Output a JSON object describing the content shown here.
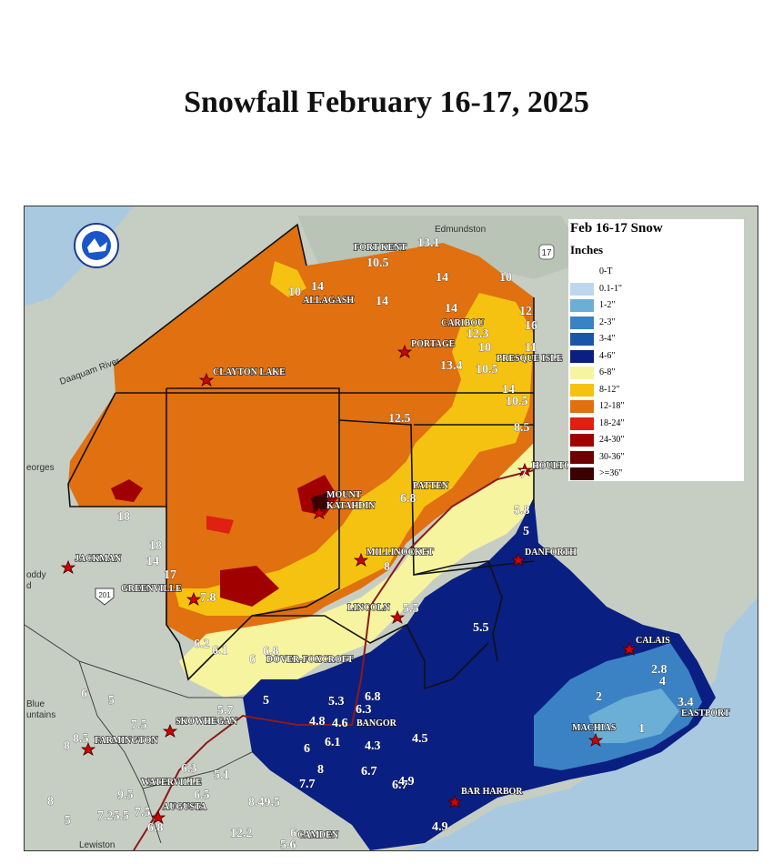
{
  "title": "Snowfall February 16-17, 2025",
  "legend": {
    "title": "Feb 16-17 Snow",
    "units": "Inches",
    "entries": [
      {
        "label": "0-T",
        "color": "#ffffff"
      },
      {
        "label": "0.1-1\"",
        "color": "#bdd7ee"
      },
      {
        "label": "1-2\"",
        "color": "#6baed6"
      },
      {
        "label": "2-3\"",
        "color": "#3b82c4"
      },
      {
        "label": "3-4\"",
        "color": "#1a56a8"
      },
      {
        "label": "4-6\"",
        "color": "#0a1f82"
      },
      {
        "label": "6-8\"",
        "color": "#f7f4a0"
      },
      {
        "label": "8-12\"",
        "color": "#f5c211"
      },
      {
        "label": "12-18\"",
        "color": "#e07010"
      },
      {
        "label": "18-24\"",
        "color": "#e02010"
      },
      {
        "label": "24-30\"",
        "color": "#a10000"
      },
      {
        "label": "30-36\"",
        "color": "#6e0000"
      },
      {
        "label": ">=36\"",
        "color": "#3d0000"
      }
    ]
  },
  "basemap_places": [
    "Edmundston",
    "Daaquam River",
    "eorges",
    "Blue",
    "untains",
    "Lewiston",
    "oddy",
    "d"
  ],
  "road_shields": [
    "17",
    "201"
  ],
  "cities": [
    "FORT KENT",
    "ALLAGASH",
    "CARIBOU",
    "PORTAGE",
    "PRESQUE ISLE",
    "CLAYTON LAKE",
    "HOULTO",
    "PATTEN",
    "MOUNT",
    "KATAHDIN",
    "MILLINOCKET",
    "DANFORTH",
    "JACKMAN",
    "GREENVILLE",
    "LINCOLN",
    "DOVER-FOXCROFT",
    "CALAIS",
    "EASTPORT",
    "MACHIAS",
    "BANGOR",
    "SKOWHEGAN",
    "FARMINGTON",
    "WATERVILLE",
    "AUGUSTA",
    "BAR HARBOR",
    "CAMDEN"
  ],
  "snow_reports": [
    "13.1",
    "10.5",
    "14",
    "10",
    "14",
    "14",
    "10",
    "14",
    "12",
    "16",
    "12.3",
    "10",
    "11",
    "13.4",
    "10.5",
    "14",
    "10.5",
    "12.5",
    "8.5",
    "7",
    "6.8",
    "5.8",
    "5",
    "18",
    "18",
    "14",
    "17",
    "7.8",
    "8",
    "5.5",
    "5.5",
    "6.2",
    "6.1",
    "6.8",
    "6",
    "5",
    "5.3",
    "6.8",
    "6.3",
    "4.8",
    "4.6",
    "6",
    "6.1",
    "4.3",
    "4.5",
    "6.7",
    "6.7",
    "8",
    "7.7",
    "4.9",
    "4.9",
    "2.8",
    "4",
    "2",
    "3.4",
    "1",
    "5.7",
    "7.5",
    "6",
    "5",
    "8.5",
    "8",
    "6.3",
    "5.1",
    "9.5",
    "6.5",
    "8",
    "7.25.5",
    "7.5",
    "6.8",
    "5",
    "8.49.5",
    "12.2",
    "6",
    "5.6"
  ]
}
